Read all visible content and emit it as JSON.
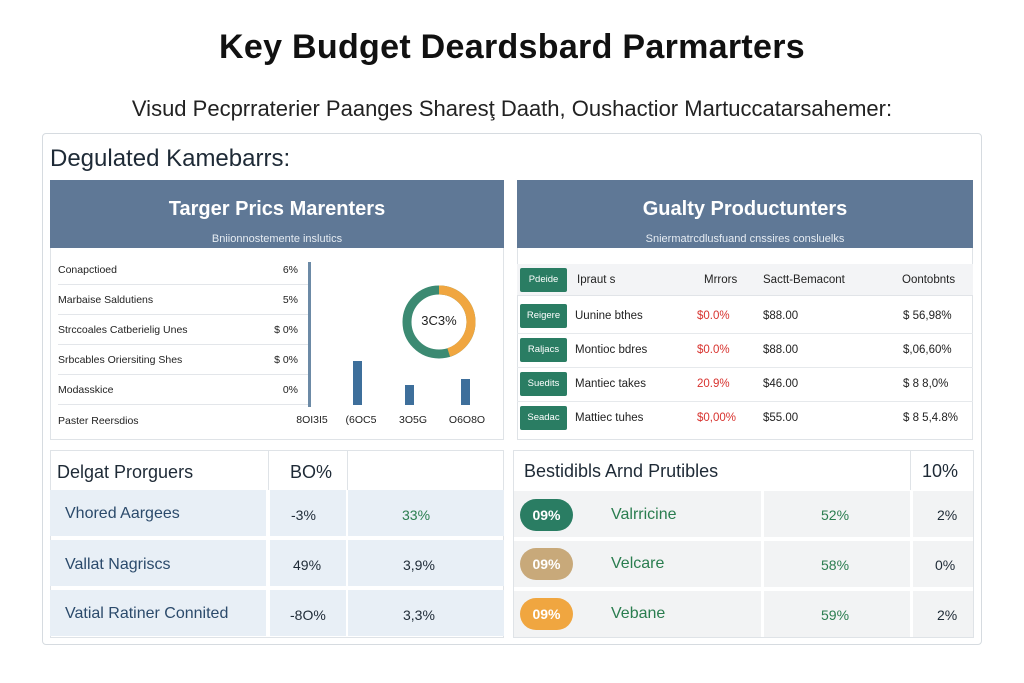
{
  "header": {
    "title": "Key Budget Deardsbard Parmarters",
    "subtitle": "Visud Pecprraterier Paanges   Sharesţ Daath, Oushactior Martuccatarsahemer:"
  },
  "section_heading": "Degulated Kamebarrs:",
  "left_card": {
    "title": "Targer Prics Marenters",
    "subtitle": "Bniionnostemente inslutics",
    "rows": [
      {
        "label": "Conapctioed",
        "value": "6%"
      },
      {
        "label": "Marbaise Saldutiens",
        "value": "5%"
      },
      {
        "label": "Strccoales Catberielig Unes",
        "value": "$ 0%"
      },
      {
        "label": "Srbcables Oriersiting Shes",
        "value": "$ 0%"
      },
      {
        "label": "Modasskice",
        "value": "0%"
      },
      {
        "label": "Paster Reersdios",
        "value": ""
      }
    ],
    "x_ticks": [
      "8OI3I5",
      "(6OC5",
      "3O5G",
      "O6O8O"
    ],
    "bar_values": [
      0.55,
      0.25,
      0.32
    ],
    "donut": {
      "label": "3C3%",
      "fraction": 0.45,
      "color_a": "#f0a640",
      "color_b": "#3c8a72"
    }
  },
  "right_card": {
    "title": "Gualty Productunters",
    "subtitle": "Sniermatrcdlusfuand cnssires consluelks",
    "columns": [
      "Pdeide",
      "Ipraut s",
      "Mrrors",
      "Sactt-Bemacont",
      "Oontobnts"
    ],
    "rows": [
      {
        "tag": "Reigere",
        "name": "Uunine bthes",
        "pct": "$0.0%",
        "amount": "$88.00",
        "total": "$ 56,98%"
      },
      {
        "tag": "Raljacs",
        "name": "Montioc bdres",
        "pct": "$0.0%",
        "amount": "$88.00",
        "total": "$,06,60%"
      },
      {
        "tag": "Suedits",
        "name": "Mantiec takes",
        "pct": "20.9%",
        "amount": "$46.00",
        "total": "$ 8 8,0%"
      },
      {
        "tag": "Seadac",
        "name": "Mattiec tuhes",
        "pct": "$0,00%",
        "amount": "$55.00",
        "total": "$ 8 5,4.8%"
      }
    ]
  },
  "bottom_left": {
    "title": "Delgat Prorguers",
    "header_value": "BO%",
    "rows": [
      {
        "label": "Vhored Aargees",
        "a": "-3%",
        "b": "33%"
      },
      {
        "label": "Vallat Nagriscs",
        "a": "49%",
        "b": "3,9%"
      },
      {
        "label": "Vatial Ratiner Connited",
        "a": "-8O%",
        "b": "3,3%"
      }
    ]
  },
  "bottom_right": {
    "title": "Bestidibls Arnd Prutibles",
    "header_value": "10%",
    "rows": [
      {
        "pill": "09%",
        "pill_color": "#2a7d63",
        "label": "Valrricine",
        "a": "52%",
        "b": "2%"
      },
      {
        "pill": "09%",
        "pill_color": "#c8a97a",
        "label": "Velcare",
        "a": "58%",
        "b": "0%"
      },
      {
        "pill": "09%",
        "pill_color": "#f0a640",
        "label": "Vebane",
        "a": "59%",
        "b": "2%"
      }
    ]
  },
  "colors": {
    "header_blue": "#5f7896",
    "bar_blue": "#3e6f9b",
    "tag_green": "#2a7d63",
    "accent_red": "#d8332f"
  }
}
